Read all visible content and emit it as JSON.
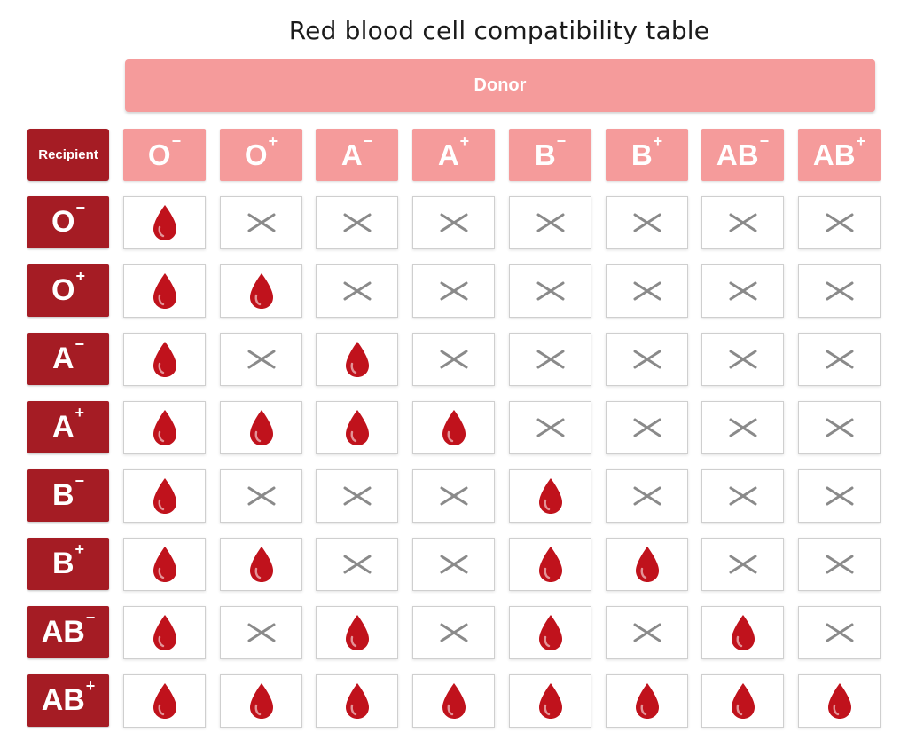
{
  "title": "Red blood cell compatibility table",
  "donor_label": "Donor",
  "recipient_label": "Recipient",
  "columns": [
    {
      "type": "O",
      "sign": "−"
    },
    {
      "type": "O",
      "sign": "+"
    },
    {
      "type": "A",
      "sign": "−"
    },
    {
      "type": "A",
      "sign": "+"
    },
    {
      "type": "B",
      "sign": "−"
    },
    {
      "type": "B",
      "sign": "+"
    },
    {
      "type": "AB",
      "sign": "−"
    },
    {
      "type": "AB",
      "sign": "+"
    }
  ],
  "rows": [
    {
      "type": "O",
      "sign": "−",
      "compatible": [
        1,
        0,
        0,
        0,
        0,
        0,
        0,
        0
      ]
    },
    {
      "type": "O",
      "sign": "+",
      "compatible": [
        1,
        1,
        0,
        0,
        0,
        0,
        0,
        0
      ]
    },
    {
      "type": "A",
      "sign": "−",
      "compatible": [
        1,
        0,
        1,
        0,
        0,
        0,
        0,
        0
      ]
    },
    {
      "type": "A",
      "sign": "+",
      "compatible": [
        1,
        1,
        1,
        1,
        0,
        0,
        0,
        0
      ]
    },
    {
      "type": "B",
      "sign": "−",
      "compatible": [
        1,
        0,
        0,
        0,
        1,
        0,
        0,
        0
      ]
    },
    {
      "type": "B",
      "sign": "+",
      "compatible": [
        1,
        1,
        0,
        0,
        1,
        1,
        0,
        0
      ]
    },
    {
      "type": "AB",
      "sign": "−",
      "compatible": [
        1,
        0,
        1,
        0,
        1,
        0,
        1,
        0
      ]
    },
    {
      "type": "AB",
      "sign": "+",
      "compatible": [
        1,
        1,
        1,
        1,
        1,
        1,
        1,
        1
      ]
    }
  ],
  "icons": {
    "compatible": "blood-drop-icon",
    "incompatible": "cross-icon"
  },
  "colors": {
    "donor": "#f59b9b",
    "recipient": "#a51c24",
    "drop": "#c0121c",
    "cross": "#8a8a8a"
  }
}
